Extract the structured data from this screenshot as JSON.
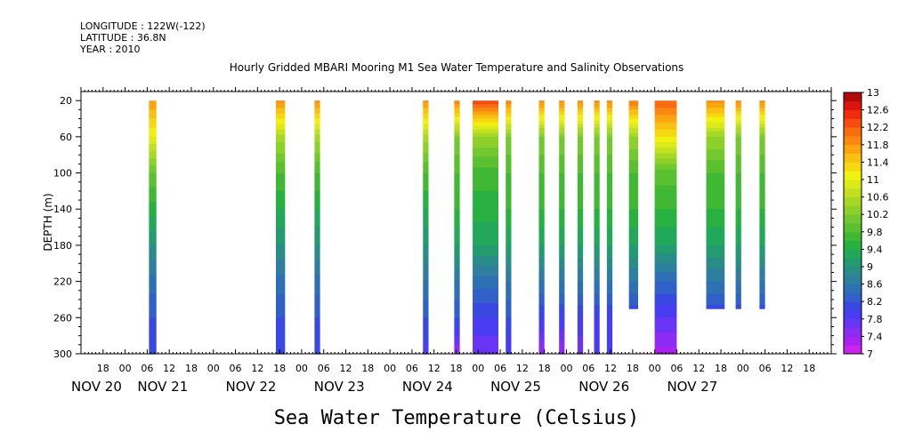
{
  "header": {
    "longitude": "LONGITUDE : 122W(-122)",
    "latitude": "LATITUDE : 36.8N",
    "year": "YEAR : 2010"
  },
  "chart_data": {
    "type": "heatmap",
    "title": "Hourly Gridded MBARI Mooring M1 Sea Water Temperature and Salinity Observations",
    "subtitle": "Sea Water Temperature (Celsius)",
    "ylabel": "DEPTH (m)",
    "xlabel": "",
    "ylim": [
      300,
      10
    ],
    "y_ticks": [
      20,
      60,
      100,
      140,
      180,
      220,
      260,
      300
    ],
    "x_range_hours": [
      0,
      204
    ],
    "x_hour_ticks": [
      {
        "h": 6,
        "label": "18"
      },
      {
        "h": 12,
        "label": "00"
      },
      {
        "h": 18,
        "label": "06"
      },
      {
        "h": 24,
        "label": "12"
      },
      {
        "h": 30,
        "label": "18"
      },
      {
        "h": 36,
        "label": "00"
      },
      {
        "h": 42,
        "label": "06"
      },
      {
        "h": 48,
        "label": "12"
      },
      {
        "h": 54,
        "label": "18"
      },
      {
        "h": 60,
        "label": "00"
      },
      {
        "h": 66,
        "label": "06"
      },
      {
        "h": 72,
        "label": "12"
      },
      {
        "h": 78,
        "label": "18"
      },
      {
        "h": 84,
        "label": "00"
      },
      {
        "h": 90,
        "label": "06"
      },
      {
        "h": 96,
        "label": "12"
      },
      {
        "h": 102,
        "label": "18"
      },
      {
        "h": 108,
        "label": "00"
      },
      {
        "h": 114,
        "label": "06"
      },
      {
        "h": 120,
        "label": "12"
      },
      {
        "h": 126,
        "label": "18"
      },
      {
        "h": 132,
        "label": "00"
      },
      {
        "h": 138,
        "label": "06"
      },
      {
        "h": 144,
        "label": "12"
      },
      {
        "h": 150,
        "label": "18"
      },
      {
        "h": 156,
        "label": "00"
      },
      {
        "h": 162,
        "label": "06"
      },
      {
        "h": 168,
        "label": "12"
      },
      {
        "h": 174,
        "label": "18"
      },
      {
        "h": 180,
        "label": "00"
      },
      {
        "h": 186,
        "label": "06"
      },
      {
        "h": 192,
        "label": "12"
      },
      {
        "h": 198,
        "label": "18"
      }
    ],
    "x_day_labels": [
      {
        "h": 0,
        "label": "NOV 20"
      },
      {
        "h": 18,
        "label": "NOV 21"
      },
      {
        "h": 42,
        "label": "NOV 22"
      },
      {
        "h": 66,
        "label": "NOV 23"
      },
      {
        "h": 90,
        "label": "NOV 24"
      },
      {
        "h": 114,
        "label": "NOV 25"
      },
      {
        "h": 138,
        "label": "NOV 26"
      },
      {
        "h": 162,
        "label": "NOV 27"
      }
    ],
    "colorbar": {
      "levels": [
        7,
        7.2,
        7.4,
        7.6,
        7.8,
        8,
        8.2,
        8.4,
        8.6,
        8.8,
        9,
        9.2,
        9.4,
        9.6,
        9.8,
        10,
        10.2,
        10.4,
        10.6,
        10.8,
        11,
        11.2,
        11.4,
        11.6,
        11.8,
        12,
        12.2,
        12.4,
        12.6,
        12.8,
        13
      ],
      "labels": [
        "7",
        "7.4",
        "7.8",
        "8.2",
        "8.6",
        "9",
        "9.4",
        "9.8",
        "10.2",
        "10.6",
        "11",
        "11.4",
        "11.8",
        "12.2",
        "12.6",
        "13"
      ],
      "colors": [
        "#cc22ee",
        "#aa22f0",
        "#8a2cf2",
        "#6a34f4",
        "#4a3cf2",
        "#3848e0",
        "#3060c8",
        "#2e70b4",
        "#2e7ea0",
        "#2a8c88",
        "#249a70",
        "#22a85a",
        "#28b040",
        "#40b834",
        "#5ac030",
        "#72c82e",
        "#8ed02a",
        "#a8d826",
        "#c2e020",
        "#dcea1a",
        "#f2f010",
        "#f6d810",
        "#f8c010",
        "#faa410",
        "#fa8810",
        "#fa6c10",
        "#f64c10",
        "#f02c10",
        "#dc1410",
        "#b00a0a"
      ]
    },
    "observation_bursts": [
      {
        "start_h": 18.5,
        "end_h": 20.5,
        "max_depth": 300,
        "profile": [
          11.8,
          11.0,
          10.0,
          9.5,
          9.0,
          8.5,
          8.2,
          8.0
        ]
      },
      {
        "start_h": 53.0,
        "end_h": 55.5,
        "max_depth": 300,
        "profile": [
          11.9,
          10.5,
          9.8,
          9.4,
          9.0,
          8.5,
          8.2,
          8.0
        ]
      },
      {
        "start_h": 63.5,
        "end_h": 65.0,
        "max_depth": 300,
        "profile": [
          11.9,
          10.5,
          9.8,
          9.4,
          9.0,
          8.5,
          8.2,
          8.0
        ]
      },
      {
        "start_h": 93.0,
        "end_h": 94.5,
        "max_depth": 300,
        "profile": [
          11.9,
          10.5,
          9.8,
          9.4,
          9.0,
          8.6,
          8.2,
          7.9
        ]
      },
      {
        "start_h": 101.5,
        "end_h": 103.0,
        "max_depth": 300,
        "profile": [
          12.0,
          10.2,
          9.8,
          9.6,
          9.2,
          8.6,
          8.2,
          7.4
        ]
      },
      {
        "start_h": 106.5,
        "end_h": 113.5,
        "max_depth": 300,
        "profile": [
          12.4,
          10.4,
          9.7,
          9.5,
          9.2,
          8.5,
          8.0,
          7.6
        ]
      },
      {
        "start_h": 115.5,
        "end_h": 117.0,
        "max_depth": 300,
        "profile": [
          12.0,
          10.2,
          9.8,
          9.6,
          9.2,
          8.6,
          8.2,
          7.8
        ]
      },
      {
        "start_h": 124.5,
        "end_h": 126.0,
        "max_depth": 300,
        "profile": [
          11.9,
          10.2,
          9.8,
          9.6,
          9.2,
          8.6,
          8.0,
          7.4
        ]
      },
      {
        "start_h": 130.0,
        "end_h": 131.5,
        "max_depth": 300,
        "profile": [
          11.9,
          10.2,
          9.8,
          9.6,
          9.2,
          8.6,
          8.0,
          7.4
        ]
      },
      {
        "start_h": 135.0,
        "end_h": 136.5,
        "max_depth": 300,
        "profile": [
          11.9,
          10.2,
          9.8,
          9.6,
          9.2,
          8.6,
          8.0,
          7.6
        ]
      },
      {
        "start_h": 139.5,
        "end_h": 141.0,
        "max_depth": 300,
        "profile": [
          11.9,
          10.2,
          9.8,
          9.6,
          9.2,
          8.6,
          8.0,
          7.8
        ]
      },
      {
        "start_h": 143.0,
        "end_h": 144.5,
        "max_depth": 300,
        "profile": [
          11.9,
          10.2,
          9.8,
          9.6,
          9.2,
          8.6,
          8.0,
          7.8
        ]
      },
      {
        "start_h": 149.0,
        "end_h": 151.5,
        "max_depth": 250,
        "profile": [
          12.0,
          10.4,
          9.8,
          9.6,
          9.2,
          8.6,
          8.0,
          7.8
        ]
      },
      {
        "start_h": 156.0,
        "end_h": 162.0,
        "max_depth": 300,
        "profile": [
          12.2,
          11.2,
          9.9,
          9.6,
          9.2,
          8.4,
          7.8,
          7.3
        ]
      },
      {
        "start_h": 170.0,
        "end_h": 175.0,
        "max_depth": 250,
        "profile": [
          11.9,
          10.4,
          9.8,
          9.6,
          9.2,
          8.6,
          8.0,
          7.8
        ]
      },
      {
        "start_h": 178.0,
        "end_h": 179.5,
        "max_depth": 250,
        "profile": [
          11.9,
          10.2,
          9.8,
          9.6,
          9.2,
          8.6,
          8.0,
          7.8
        ]
      },
      {
        "start_h": 184.5,
        "end_h": 186.0,
        "max_depth": 250,
        "profile": [
          11.9,
          10.2,
          9.8,
          9.6,
          9.2,
          8.6,
          8.0,
          7.8
        ]
      }
    ],
    "profile_depths": [
      20,
      60,
      100,
      140,
      180,
      220,
      260,
      300
    ]
  }
}
